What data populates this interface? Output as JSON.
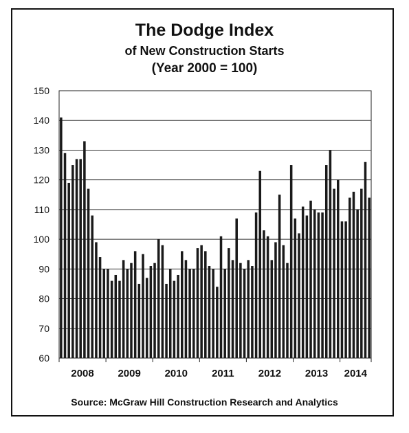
{
  "chart_data": {
    "type": "bar",
    "title": "The Dodge Index",
    "subtitle_lines": [
      "of New Construction Starts",
      "(Year 2000 = 100)"
    ],
    "xlabel": "",
    "ylabel": "",
    "ylim": [
      60,
      150
    ],
    "yticks": [
      60,
      70,
      80,
      90,
      100,
      110,
      120,
      130,
      140,
      150
    ],
    "grid": true,
    "legend": "none",
    "year_labels": [
      "2008",
      "2009",
      "2010",
      "2011",
      "2012",
      "2013",
      "2014"
    ],
    "start": "2008-01",
    "values": [
      141,
      129,
      119,
      125,
      127,
      127,
      133,
      117,
      108,
      99,
      94,
      90,
      90,
      86,
      88,
      86,
      93,
      90,
      92,
      96,
      85,
      95,
      87,
      91,
      92,
      100,
      98,
      85,
      90,
      86,
      88,
      96,
      93,
      90,
      90,
      97,
      98,
      96,
      91,
      90,
      84,
      101,
      90,
      97,
      93,
      107,
      92,
      90,
      93,
      91,
      109,
      123,
      103,
      101,
      93,
      99,
      115,
      98,
      92,
      125,
      107,
      102,
      111,
      108,
      113,
      110,
      109,
      109,
      125,
      130,
      117,
      120,
      106,
      106,
      114,
      116,
      110,
      117,
      126,
      114
    ],
    "bar_color": "#1a1a1a"
  },
  "source": "Source:  McGraw Hill Construction Research and Analytics"
}
